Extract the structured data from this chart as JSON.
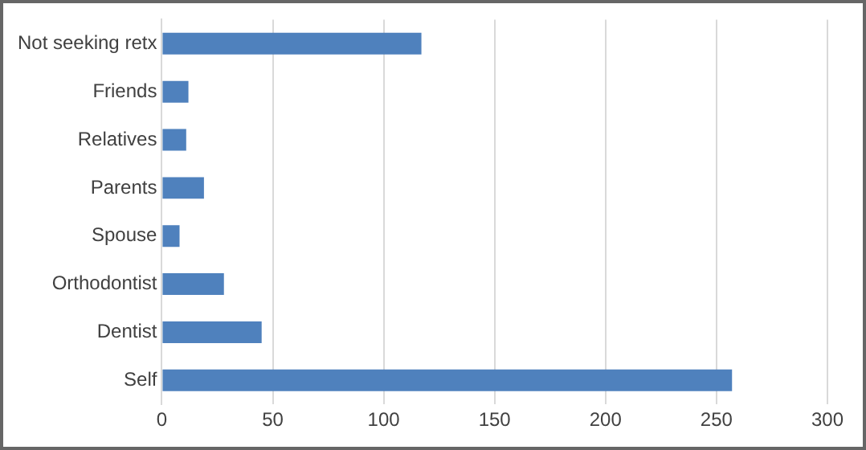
{
  "chart_data": {
    "type": "bar",
    "orientation": "horizontal",
    "categories": [
      "Not seeking retx",
      "Friends",
      "Relatives",
      "Parents",
      "Spouse",
      "Orthodontist",
      "Dentist",
      "Self"
    ],
    "values": [
      117,
      12,
      11,
      19,
      8,
      28,
      45,
      257
    ],
    "color": "#4f81bd",
    "xlim": [
      0,
      300
    ],
    "xticks": [
      0,
      50,
      100,
      150,
      200,
      250,
      300
    ],
    "grid": "x"
  }
}
